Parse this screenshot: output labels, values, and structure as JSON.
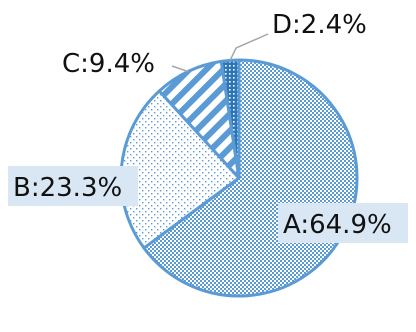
{
  "chart_data": {
    "type": "pie",
    "categories": [
      "A",
      "B",
      "C",
      "D"
    ],
    "values": [
      64.9,
      23.3,
      9.4,
      2.4
    ],
    "labels": [
      "A:64.9%",
      "B:23.3%",
      "C:9.4%",
      "D:2.4%"
    ],
    "start": "top",
    "direction": "clockwise",
    "title": "",
    "legend": "none",
    "colors": {
      "outline": "#5b9bd5",
      "a_pattern": "#5b9bd5",
      "b_pattern": "#5b9bd5",
      "c_pattern": "#5b9bd5",
      "d_pattern": "#2e75b6",
      "label_box": "#d9e6f4",
      "leader_line": "#a6a6a6"
    }
  }
}
